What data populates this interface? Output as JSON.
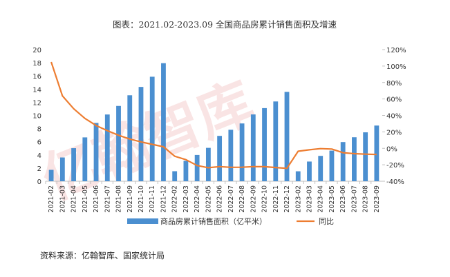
{
  "chart_data": {
    "type": "bar",
    "title": "图表：2021.02-2023.09 全国商品房累计销售面积及增速",
    "categories": [
      "2021-02",
      "2021-03",
      "2021-04",
      "2021-05",
      "2021-06",
      "2021-07",
      "2021-08",
      "2021-09",
      "2021-10",
      "2021-11",
      "2021-12",
      "2022-02",
      "2022-03",
      "2022-04",
      "2022-05",
      "2022-06",
      "2022-07",
      "2022-08",
      "2022-09",
      "2022-10",
      "2022-11",
      "2022-12",
      "2023-02",
      "2023-03",
      "2023-04",
      "2023-05",
      "2023-06",
      "2023-07",
      "2023-08",
      "2023-09"
    ],
    "series": [
      {
        "name": "商品房累计销售面积（亿平米）",
        "axis": "left",
        "kind": "bar",
        "color": "#4b8fd0",
        "values": [
          1.73,
          3.61,
          5.02,
          6.66,
          8.86,
          10.14,
          11.44,
          13.06,
          14.33,
          15.88,
          17.94,
          1.52,
          3.1,
          3.99,
          5.07,
          6.89,
          7.82,
          8.78,
          10.15,
          11.11,
          12.12,
          13.58,
          1.51,
          2.99,
          3.85,
          4.65,
          5.95,
          6.68,
          7.43,
          8.46
        ]
      },
      {
        "name": "同比",
        "axis": "right",
        "kind": "line",
        "color": "#ed7d31",
        "values": [
          104.9,
          63.8,
          48.1,
          36.4,
          27.7,
          21.5,
          15.9,
          11.3,
          7.8,
          4.8,
          1.9,
          -9.6,
          -13.8,
          -20.9,
          -23.6,
          -22.2,
          -23.1,
          -23.0,
          -22.2,
          -22.3,
          -23.3,
          -24.3,
          -3.6,
          -1.8,
          -0.4,
          -0.9,
          -5.3,
          -6.5,
          -7.1,
          -7.5
        ]
      }
    ],
    "y_left": {
      "ylim": [
        0,
        20
      ],
      "ticks": [
        "0",
        "2",
        "4",
        "6",
        "8",
        "10",
        "12",
        "14",
        "16",
        "18",
        "20"
      ]
    },
    "y_right": {
      "ylim": [
        -40,
        120
      ],
      "ticks": [
        "-40%",
        "-20%",
        "0%",
        "20%",
        "40%",
        "60%",
        "80%",
        "100%",
        "120%"
      ]
    },
    "grid": false,
    "legend_position": "bottom"
  },
  "source_note": "资料来源：亿翰智库、国家统计局",
  "watermark": "亿翰智库"
}
